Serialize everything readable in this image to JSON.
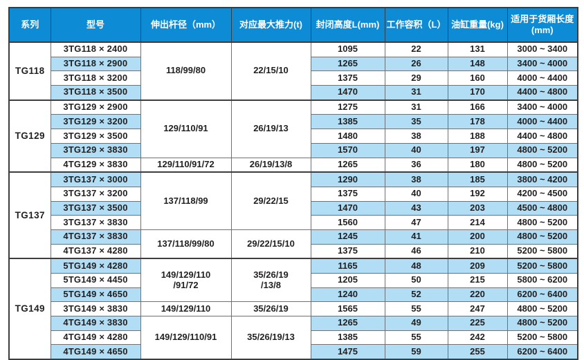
{
  "colors": {
    "header_bg": "#0E8BD5",
    "header_text": "#FFFFFF",
    "stripe_bg": "#B1DEF4",
    "border": "#6F7073",
    "outer_border": "#3C3C3E",
    "text": "#221F20"
  },
  "table": {
    "headers": [
      "系列",
      "型号",
      "伸出杆径（mm）",
      "对应最大推力(t)",
      "封闭高度L(mm)",
      "工作容积（L）",
      "油缸重量(kg)",
      "适用于货厢长度\n(mm)"
    ],
    "groups": [
      {
        "series": "TG118",
        "subgroups": [
          {
            "rod": "118/99/80",
            "thrust": "22/15/10",
            "rows": [
              {
                "model": "3TG118 × 2400",
                "height": "1095",
                "volume": "22",
                "weight": "131",
                "range": "3000 ~ 3400"
              },
              {
                "model": "3TG118 × 2900",
                "height": "1265",
                "volume": "26",
                "weight": "148",
                "range": "3400 ~ 4000"
              },
              {
                "model": "3TG118 × 3200",
                "height": "1375",
                "volume": "29",
                "weight": "160",
                "range": "4000 ~ 4400"
              },
              {
                "model": "3TG118 × 3500",
                "height": "1470",
                "volume": "31",
                "weight": "170",
                "range": "4400 ~ 4800"
              }
            ]
          }
        ]
      },
      {
        "series": "TG129",
        "subgroups": [
          {
            "rod": "129/110/91",
            "thrust": "26/19/13",
            "rows": [
              {
                "model": "3TG129 × 2900",
                "height": "1275",
                "volume": "31",
                "weight": "166",
                "range": "3400 ~ 4000"
              },
              {
                "model": "3TG129 × 3200",
                "height": "1385",
                "volume": "35",
                "weight": "178",
                "range": "4000 ~ 4400"
              },
              {
                "model": "3TG129 × 3500",
                "height": "1480",
                "volume": "38",
                "weight": "188",
                "range": "4400 ~ 4800"
              },
              {
                "model": "3TG129 × 3830",
                "height": "1570",
                "volume": "40",
                "weight": "197",
                "range": "4800 ~ 5200"
              }
            ]
          },
          {
            "rod": "129/110/91/72",
            "thrust": "26/19/13/8",
            "rows": [
              {
                "model": "4TG129 × 3830",
                "height": "1265",
                "volume": "36",
                "weight": "180",
                "range": "4800 ~ 5200"
              }
            ]
          }
        ]
      },
      {
        "series": "TG137",
        "subgroups": [
          {
            "rod": "137/118/99",
            "thrust": "29/22/15",
            "rows": [
              {
                "model": "3TG137 × 3000",
                "height": "1290",
                "volume": "38",
                "weight": "185",
                "range": "3800 ~ 4200"
              },
              {
                "model": "3TG137 × 3200",
                "height": "1375",
                "volume": "40",
                "weight": "192",
                "range": "4200 ~ 4500"
              },
              {
                "model": "3TG137 × 3500",
                "height": "1470",
                "volume": "43",
                "weight": "203",
                "range": "4500 ~ 4800"
              },
              {
                "model": "3TG137 × 3830",
                "height": "1560",
                "volume": "47",
                "weight": "214",
                "range": "4800 ~ 5200"
              }
            ]
          },
          {
            "rod": "137/118/99/80",
            "thrust": "29/22/15/10",
            "rows": [
              {
                "model": "4TG137 × 3830",
                "height": "1245",
                "volume": "41",
                "weight": "200",
                "range": "4800 ~ 5200"
              },
              {
                "model": "4TG137 × 4280",
                "height": "1375",
                "volume": "46",
                "weight": "210",
                "range": "5200 ~ 5800"
              }
            ]
          }
        ]
      },
      {
        "series": "TG149",
        "subgroups": [
          {
            "rod": "149/129/110\n/91/72",
            "thrust": "35/26/19\n/13/8",
            "rows": [
              {
                "model": "5TG149 × 4280",
                "height": "1165",
                "volume": "48",
                "weight": "209",
                "range": "5200 ~ 5800"
              },
              {
                "model": "5TG149 × 4450",
                "height": "1205",
                "volume": "50",
                "weight": "215",
                "range": "5800 ~ 6200"
              },
              {
                "model": "5TG149 × 4650",
                "height": "1240",
                "volume": "52",
                "weight": "220",
                "range": "6200 ~ 6400"
              }
            ]
          },
          {
            "rod": "149/129/110",
            "thrust": "35/26/19",
            "rows": [
              {
                "model": "3TG149 × 3830",
                "height": "1565",
                "volume": "55",
                "weight": "247",
                "range": "4800 ~ 5200"
              }
            ]
          },
          {
            "rod": "149/129/110/91",
            "thrust": "35/26/19/13",
            "rows": [
              {
                "model": "4TG149 × 3830",
                "height": "1265",
                "volume": "49",
                "weight": "225",
                "range": "4800 ~ 5200"
              },
              {
                "model": "4TG149 × 4280",
                "height": "1385",
                "volume": "55",
                "weight": "242",
                "range": "5200 ~ 5800"
              },
              {
                "model": "4TG149 × 4650",
                "height": "1475",
                "volume": "59",
                "weight": "255",
                "range": "6200 ~ 6400"
              }
            ]
          }
        ]
      }
    ]
  }
}
